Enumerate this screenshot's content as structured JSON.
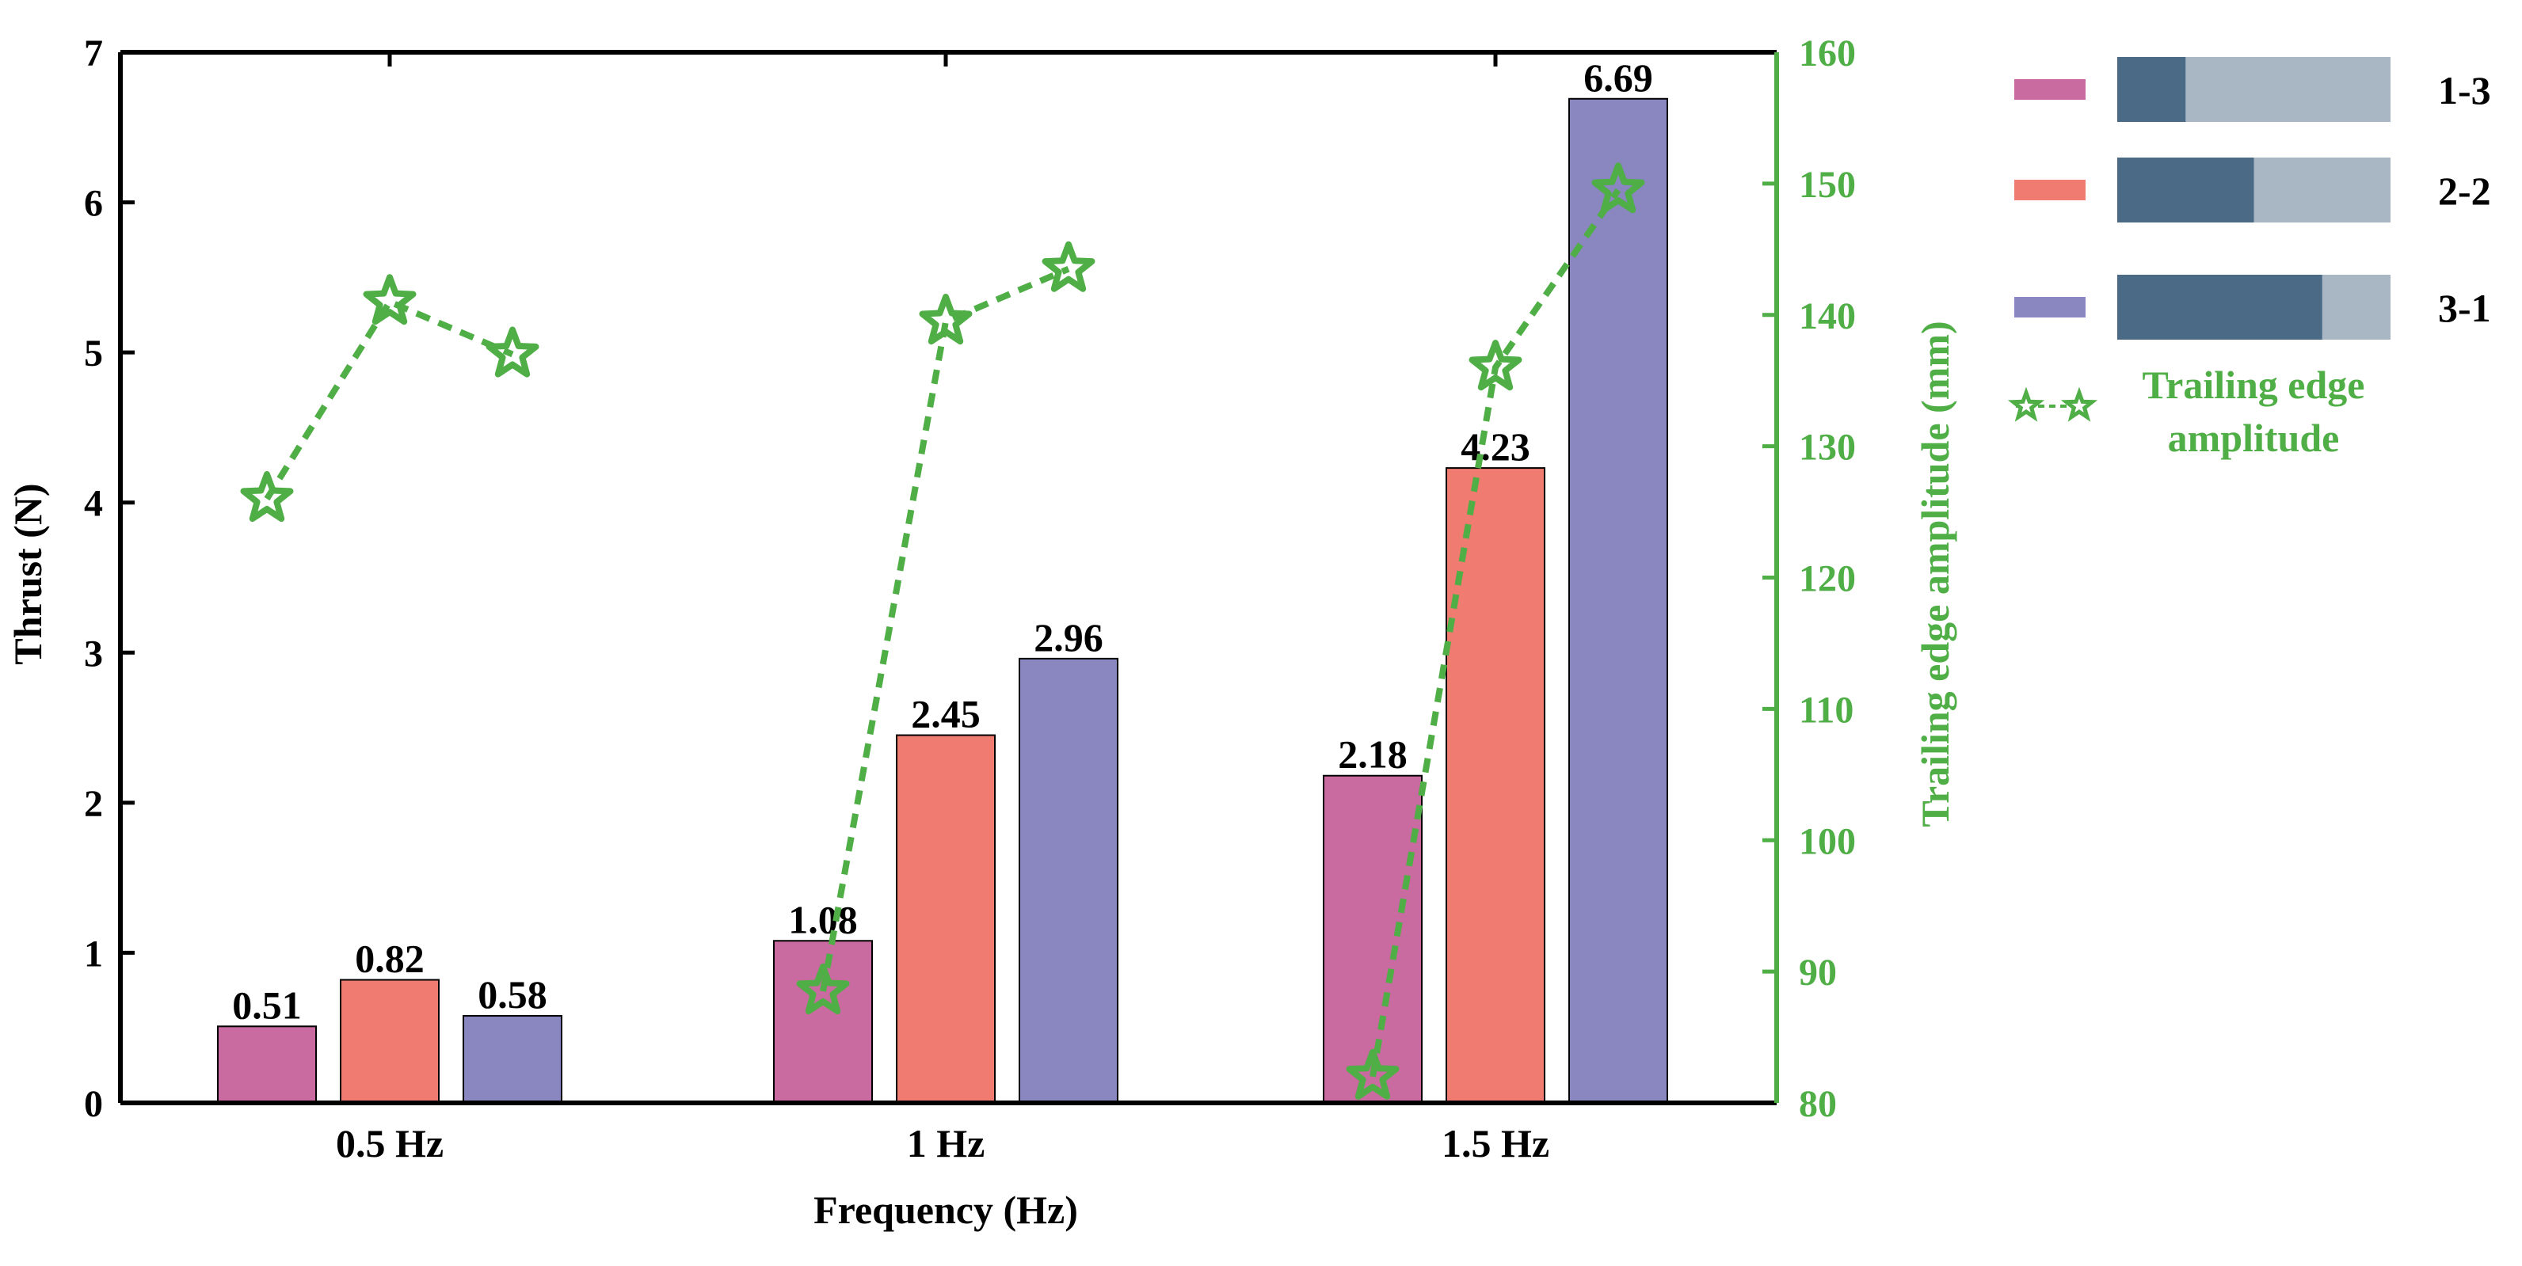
{
  "chart_data": {
    "type": "bar",
    "xlabel": "Frequency (Hz)",
    "ylabel": "Thrust (N)",
    "y2label": "Trailing edge amplitude (mm)",
    "ylim": [
      0,
      7
    ],
    "y_ticks": [
      "0",
      "1",
      "2",
      "3",
      "4",
      "5",
      "6",
      "7"
    ],
    "y2lim": [
      80,
      160
    ],
    "y2_ticks": [
      "80",
      "90",
      "100",
      "110",
      "120",
      "130",
      "140",
      "150",
      "160"
    ],
    "categories": [
      "0.5 Hz",
      "1 Hz",
      "1.5 Hz"
    ],
    "series": [
      {
        "name": "1-3",
        "color": "#c96aa0",
        "values": [
          0.51,
          1.08,
          2.18
        ],
        "labels": [
          "0.51",
          "1.08",
          "2.18"
        ]
      },
      {
        "name": "2-2",
        "color": "#f07b70",
        "values": [
          0.82,
          2.45,
          4.23
        ],
        "labels": [
          "0.82",
          "2.45",
          "4.23"
        ]
      },
      {
        "name": "3-1",
        "color": "#8a86bf",
        "values": [
          0.58,
          2.96,
          6.69
        ],
        "labels": [
          "0.58",
          "2.96",
          "6.69"
        ]
      }
    ],
    "line_series": {
      "name": "Trailing edge amplitude",
      "color": "#4fae45",
      "values": [
        [
          126,
          141,
          137
        ],
        [
          88.5,
          139.5,
          143.5
        ],
        [
          82,
          136,
          149.5
        ]
      ]
    },
    "legend": {
      "position": "right",
      "items": [
        {
          "label": "1-3",
          "color": "#c96aa0",
          "ratio_fraction": 0.25
        },
        {
          "label": "2-2",
          "color": "#f07b70",
          "ratio_fraction": 0.5
        },
        {
          "label": "3-1",
          "color": "#8a86bf",
          "ratio_fraction": 0.75
        }
      ],
      "ratio_dark_color": "#4a6a86",
      "ratio_light_color": "#a9b7c5",
      "line_label_1": "Trailing edge",
      "line_label_2": "amplitude"
    },
    "axis_color": "#000000",
    "y2_axis_color": "#4fae45"
  }
}
